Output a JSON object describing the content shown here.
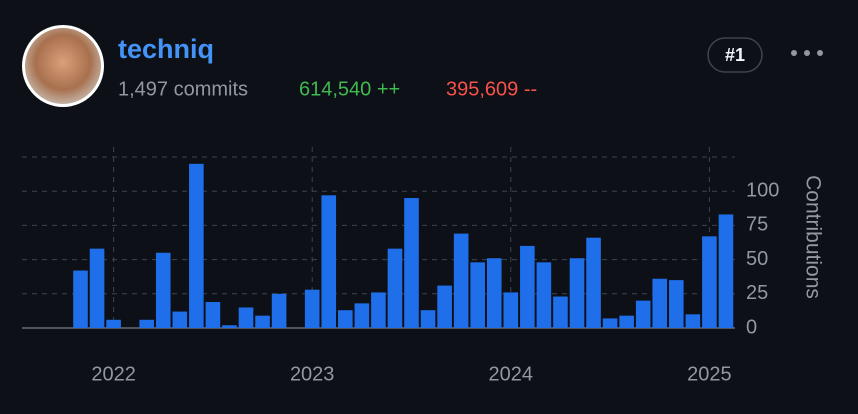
{
  "header": {
    "name": "techniq",
    "commits": "1,497 commits",
    "additions": "614,540 ++",
    "deletions": "395,609 --",
    "rank": "#1"
  },
  "chart_data": {
    "type": "bar",
    "y_label": "Contributions",
    "color": "#1f6feb",
    "categories": [
      null,
      null,
      "2022",
      null,
      null,
      null,
      null,
      null,
      null,
      null,
      null,
      null,
      null,
      null,
      "2023",
      null,
      null,
      null,
      null,
      null,
      null,
      null,
      null,
      null,
      null,
      null,
      "2024",
      null,
      null,
      null,
      null,
      null,
      null,
      null,
      null,
      null,
      null,
      null,
      "2025",
      null
    ],
    "values": [
      42,
      58,
      6,
      0,
      6,
      55,
      12,
      120,
      19,
      2,
      15,
      9,
      25,
      0,
      28,
      97,
      13,
      18,
      26,
      58,
      95,
      13,
      31,
      69,
      48,
      51,
      26,
      60,
      48,
      23,
      51,
      66,
      7,
      9,
      20,
      36,
      35,
      10,
      67,
      83
    ],
    "ylim": [
      0,
      125
    ],
    "yticks": [
      0,
      25,
      50,
      75,
      100
    ],
    "grid": true
  }
}
